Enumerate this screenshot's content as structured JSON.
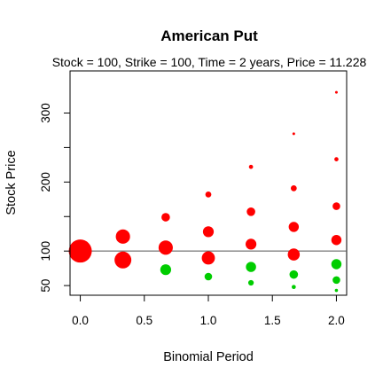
{
  "chart_data": {
    "type": "scatter",
    "title": "American Put",
    "subtitle": "Stock = 100, Strike = 100, Time = 2 years, Price = 11.228",
    "xlabel": "Binomial Period",
    "ylabel": "Stock Price",
    "xlim": [
      -0.08,
      2.08
    ],
    "ylim": [
      36,
      361
    ],
    "x_ticks": [
      0.0,
      0.5,
      1.0,
      1.5,
      2.0
    ],
    "x_tick_labels": [
      "0.0",
      "0.5",
      "1.0",
      "1.5",
      "2.0"
    ],
    "y_ticks": [
      50,
      100,
      150,
      200,
      250,
      300
    ],
    "y_tick_labels": [
      "50",
      "100",
      "",
      "200",
      "",
      "300"
    ],
    "reference_line": {
      "y": 100,
      "color": "#555555"
    },
    "colors": {
      "red": "#ff0000",
      "green": "#00cd00"
    },
    "grid": false,
    "legend": "none",
    "series": [
      {
        "color": "red",
        "points": [
          {
            "x": 0.0,
            "y": 100,
            "size": 1.0
          },
          {
            "x": 0.333,
            "y": 121,
            "size": 0.62
          },
          {
            "x": 0.333,
            "y": 87,
            "size": 0.73
          },
          {
            "x": 0.667,
            "y": 149,
            "size": 0.37
          },
          {
            "x": 0.667,
            "y": 105,
            "size": 0.62
          },
          {
            "x": 1.0,
            "y": 182,
            "size": 0.26
          },
          {
            "x": 1.0,
            "y": 128,
            "size": 0.47
          },
          {
            "x": 1.0,
            "y": 90,
            "size": 0.57
          },
          {
            "x": 1.333,
            "y": 222,
            "size": 0.18
          },
          {
            "x": 1.333,
            "y": 157,
            "size": 0.37
          },
          {
            "x": 1.333,
            "y": 110,
            "size": 0.47
          },
          {
            "x": 1.667,
            "y": 270,
            "size": 0.09
          },
          {
            "x": 1.667,
            "y": 191,
            "size": 0.26
          },
          {
            "x": 1.667,
            "y": 135,
            "size": 0.44
          },
          {
            "x": 1.667,
            "y": 95,
            "size": 0.52
          },
          {
            "x": 2.0,
            "y": 330,
            "size": 0.06
          },
          {
            "x": 2.0,
            "y": 233,
            "size": 0.18
          },
          {
            "x": 2.0,
            "y": 165,
            "size": 0.33
          },
          {
            "x": 2.0,
            "y": 116,
            "size": 0.44
          }
        ]
      },
      {
        "color": "green",
        "points": [
          {
            "x": 0.667,
            "y": 73,
            "size": 0.47
          },
          {
            "x": 1.0,
            "y": 63,
            "size": 0.33
          },
          {
            "x": 1.333,
            "y": 77,
            "size": 0.44
          },
          {
            "x": 1.333,
            "y": 54,
            "size": 0.24
          },
          {
            "x": 1.667,
            "y": 66,
            "size": 0.37
          },
          {
            "x": 1.667,
            "y": 48,
            "size": 0.18
          },
          {
            "x": 2.0,
            "y": 81,
            "size": 0.44
          },
          {
            "x": 2.0,
            "y": 58,
            "size": 0.33
          },
          {
            "x": 2.0,
            "y": 43,
            "size": 0.14
          }
        ]
      }
    ]
  }
}
